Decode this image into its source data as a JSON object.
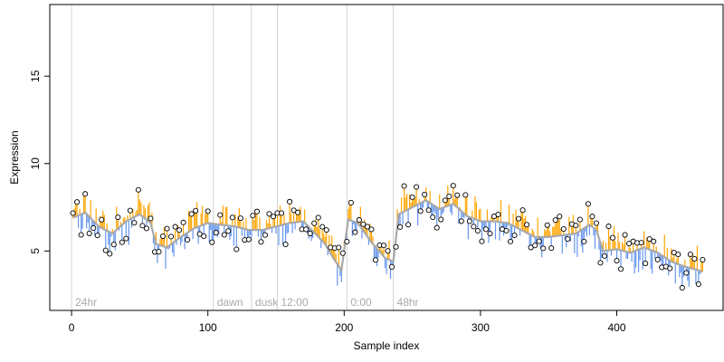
{
  "chart_data": {
    "type": "scatter",
    "title": "",
    "xlabel": "Sample index",
    "ylabel": "Expression",
    "xlim": [
      -16,
      478
    ],
    "ylim": [
      1.6,
      19.1
    ],
    "xticks": [
      0,
      100,
      200,
      300,
      400
    ],
    "yticks": [
      5,
      10,
      15
    ],
    "grid": false,
    "colors": {
      "point_fill": "#ffffff",
      "point_stroke": "#000000",
      "trend_line": "#a9a9a9",
      "residual_above": "#ffa500",
      "residual_below": "#6495ed",
      "annotation_line": "#d3d3d3",
      "annotation_text": "#a9a9a9"
    },
    "annotations": [
      {
        "x": 0,
        "label": "24hr"
      },
      {
        "x": 104,
        "label": "dawn"
      },
      {
        "x": 132,
        "label": "dusk"
      },
      {
        "x": 151,
        "label": "12:00"
      },
      {
        "x": 202,
        "label": "0:00"
      },
      {
        "x": 236,
        "label": "48hr"
      }
    ],
    "trend": [
      [
        1,
        6.9
      ],
      [
        10,
        7.2
      ],
      [
        20,
        6.4
      ],
      [
        30,
        6.0
      ],
      [
        40,
        6.7
      ],
      [
        50,
        7.1
      ],
      [
        58,
        6.6
      ],
      [
        62,
        5.4
      ],
      [
        70,
        5.2
      ],
      [
        80,
        5.8
      ],
      [
        90,
        6.3
      ],
      [
        100,
        6.6
      ],
      [
        110,
        6.5
      ],
      [
        120,
        6.4
      ],
      [
        130,
        6.2
      ],
      [
        140,
        6.2
      ],
      [
        150,
        6.4
      ],
      [
        160,
        6.6
      ],
      [
        170,
        6.7
      ],
      [
        180,
        5.9
      ],
      [
        186,
        5.4
      ],
      [
        192,
        4.6
      ],
      [
        198,
        3.9
      ],
      [
        203,
        6.8
      ],
      [
        210,
        6.6
      ],
      [
        220,
        5.5
      ],
      [
        230,
        4.6
      ],
      [
        236,
        4.4
      ],
      [
        240,
        7.1
      ],
      [
        250,
        7.5
      ],
      [
        260,
        7.9
      ],
      [
        270,
        7.4
      ],
      [
        280,
        7.7
      ],
      [
        290,
        7.0
      ],
      [
        300,
        6.7
      ],
      [
        310,
        6.7
      ],
      [
        320,
        6.6
      ],
      [
        330,
        6.2
      ],
      [
        340,
        5.8
      ],
      [
        350,
        5.8
      ],
      [
        360,
        5.9
      ],
      [
        370,
        6.0
      ],
      [
        380,
        6.5
      ],
      [
        385,
        6.2
      ],
      [
        390,
        5.0
      ],
      [
        400,
        5.1
      ],
      [
        410,
        4.9
      ],
      [
        420,
        5.2
      ],
      [
        430,
        4.9
      ],
      [
        440,
        4.4
      ],
      [
        450,
        4.1
      ],
      [
        460,
        3.9
      ],
      [
        463,
        3.8
      ]
    ]
  }
}
